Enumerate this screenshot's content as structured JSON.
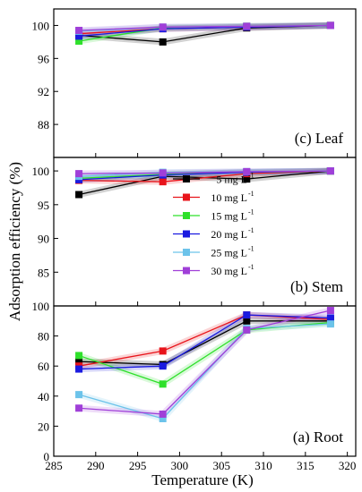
{
  "figure": {
    "ylabel": "Adsorption efficiency (%)",
    "xlabel": "Temperature (K)",
    "x_ticks": [
      285,
      290,
      295,
      300,
      305,
      310,
      315,
      320
    ],
    "xlim": [
      285,
      321
    ]
  },
  "legend": {
    "entries": [
      {
        "label": "5 mg L",
        "sup": "-1",
        "color": "#000000"
      },
      {
        "label": "10 mg L",
        "sup": "-1",
        "color": "#e8141b"
      },
      {
        "label": "15 mg L",
        "sup": "-1",
        "color": "#2ee02a"
      },
      {
        "label": "20 mg L",
        "sup": "-1",
        "color": "#1a1ae0"
      },
      {
        "label": "25 mg L",
        "sup": "-1",
        "color": "#6cc3ea"
      },
      {
        "label": "30 mg L",
        "sup": "-1",
        "color": "#a03fd8"
      }
    ]
  },
  "chart_data": [
    {
      "type": "line",
      "panel_label": "(c) Leaf",
      "ylim": [
        84,
        102
      ],
      "y_ticks": [
        88,
        92,
        96,
        100
      ],
      "x": [
        288,
        298,
        308,
        318
      ],
      "series": [
        {
          "name": "5 mg L-1",
          "color": "#000000",
          "values": [
            98.8,
            98.0,
            99.7,
            100
          ]
        },
        {
          "name": "10 mg L-1",
          "color": "#e8141b",
          "values": [
            99.0,
            99.6,
            99.8,
            100
          ]
        },
        {
          "name": "15 mg L-1",
          "color": "#2ee02a",
          "values": [
            98.1,
            99.7,
            99.9,
            100
          ]
        },
        {
          "name": "20 mg L-1",
          "color": "#1a1ae0",
          "values": [
            98.7,
            99.6,
            99.8,
            100
          ]
        },
        {
          "name": "25 mg L-1",
          "color": "#6cc3ea",
          "values": [
            99.3,
            99.8,
            99.9,
            100
          ]
        },
        {
          "name": "30 mg L-1",
          "color": "#a03fd8",
          "values": [
            99.4,
            99.8,
            99.9,
            100
          ]
        }
      ]
    },
    {
      "type": "line",
      "panel_label": "(b) Stem",
      "ylim": [
        80,
        102
      ],
      "y_ticks": [
        85,
        90,
        95,
        100
      ],
      "x": [
        288,
        298,
        308,
        318
      ],
      "series": [
        {
          "name": "5 mg L-1",
          "color": "#000000",
          "values": [
            96.5,
            99.2,
            98.8,
            100
          ]
        },
        {
          "name": "10 mg L-1",
          "color": "#e8141b",
          "values": [
            98.6,
            98.4,
            99.6,
            100
          ]
        },
        {
          "name": "15 mg L-1",
          "color": "#2ee02a",
          "values": [
            98.9,
            99.5,
            99.8,
            100
          ]
        },
        {
          "name": "20 mg L-1",
          "color": "#1a1ae0",
          "values": [
            98.7,
            99.4,
            99.8,
            100
          ]
        },
        {
          "name": "25 mg L-1",
          "color": "#6cc3ea",
          "values": [
            99.2,
            99.8,
            99.9,
            100
          ]
        },
        {
          "name": "30 mg L-1",
          "color": "#a03fd8",
          "values": [
            99.6,
            99.7,
            99.9,
            100
          ]
        }
      ]
    },
    {
      "type": "line",
      "panel_label": "(a) Root",
      "ylim": [
        0,
        100
      ],
      "y_ticks": [
        0,
        20,
        40,
        60,
        80,
        100
      ],
      "x": [
        288,
        298,
        308,
        318
      ],
      "series": [
        {
          "name": "5 mg L-1",
          "color": "#000000",
          "values": [
            63,
            61,
            90,
            90
          ]
        },
        {
          "name": "10 mg L-1",
          "color": "#e8141b",
          "values": [
            60,
            70,
            94,
            91
          ]
        },
        {
          "name": "15 mg L-1",
          "color": "#2ee02a",
          "values": [
            67,
            48,
            84,
            89
          ]
        },
        {
          "name": "20 mg L-1",
          "color": "#1a1ae0",
          "values": [
            58,
            60,
            94,
            92
          ]
        },
        {
          "name": "25 mg L-1",
          "color": "#6cc3ea",
          "values": [
            41,
            25,
            85,
            88
          ]
        },
        {
          "name": "30 mg L-1",
          "color": "#a03fd8",
          "values": [
            32,
            28,
            84,
            97
          ]
        }
      ]
    }
  ]
}
